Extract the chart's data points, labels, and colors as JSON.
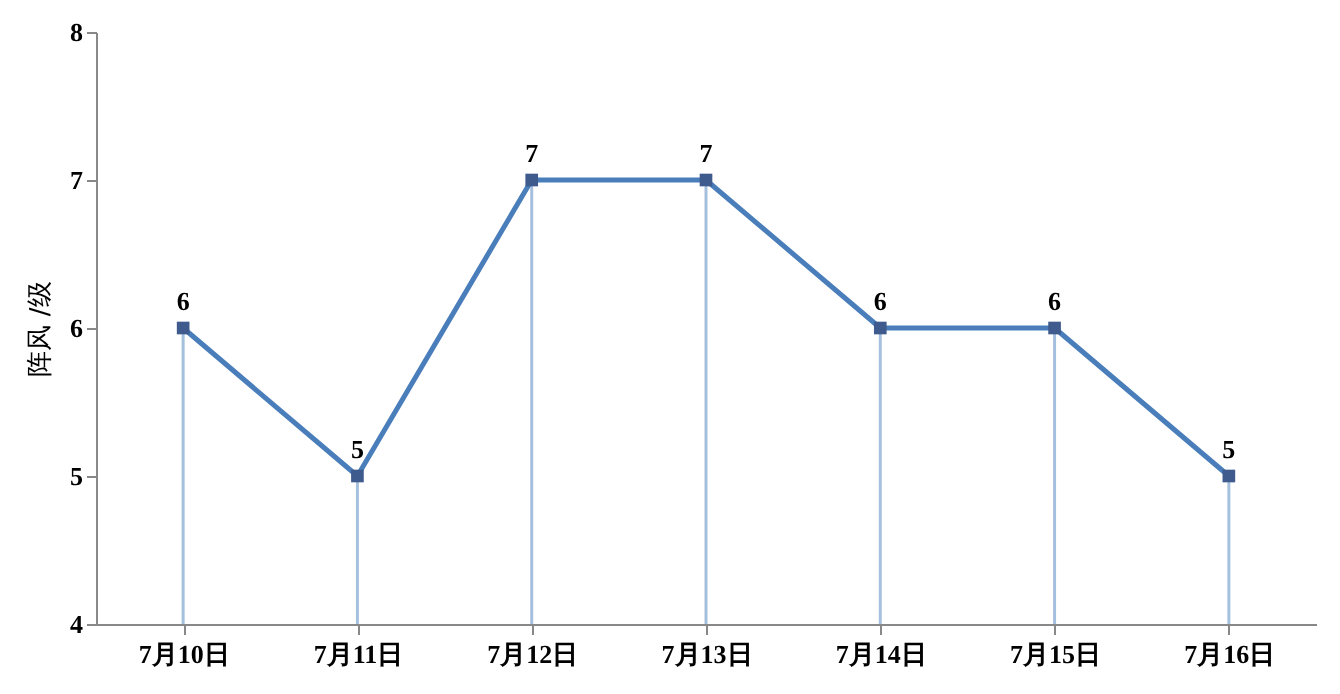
{
  "chart_data": {
    "type": "line",
    "ylabel": "阵风 /级",
    "categories": [
      "7月10日",
      "7月11日",
      "7月12日",
      "7月13日",
      "7月14日",
      "7月15日",
      "7月16日"
    ],
    "series": [
      {
        "color": "#4a7ebb",
        "values": [
          6,
          5,
          7,
          7,
          6,
          6,
          5
        ]
      }
    ],
    "ylim": [
      4,
      8
    ],
    "yticks": [
      4,
      5,
      6,
      7,
      8
    ],
    "marker": "square",
    "line_style": "solid",
    "data_labels": true
  }
}
